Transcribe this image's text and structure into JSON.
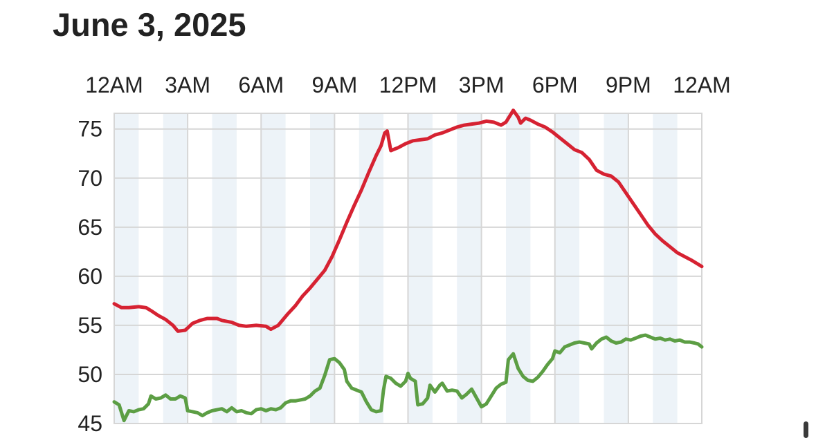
{
  "header": {
    "title": "June 3, 2025"
  },
  "chart_data": {
    "type": "line",
    "title": "",
    "xlabel": "",
    "ylabel": "",
    "x_unit": "hour of day",
    "xlim": [
      0,
      24
    ],
    "ylim": [
      45,
      76.6
    ],
    "grid": true,
    "legend": "none",
    "x_ticks": [
      {
        "hour": 0,
        "label": "12AM"
      },
      {
        "hour": 3,
        "label": "3AM"
      },
      {
        "hour": 6,
        "label": "6AM"
      },
      {
        "hour": 9,
        "label": "9AM"
      },
      {
        "hour": 12,
        "label": "12PM"
      },
      {
        "hour": 15,
        "label": "3PM"
      },
      {
        "hour": 18,
        "label": "6PM"
      },
      {
        "hour": 21,
        "label": "9PM"
      },
      {
        "hour": 24,
        "label": "12AM"
      }
    ],
    "y_ticks": [
      45,
      50,
      55,
      60,
      65,
      70,
      75
    ],
    "series": [
      {
        "color": "#d62232",
        "points": [
          [
            0,
            57.2
          ],
          [
            0.3,
            56.8
          ],
          [
            0.6,
            56.8
          ],
          [
            1,
            56.9
          ],
          [
            1.3,
            56.8
          ],
          [
            1.5,
            56.5
          ],
          [
            1.8,
            56.0
          ],
          [
            2.1,
            55.6
          ],
          [
            2.4,
            55.0
          ],
          [
            2.6,
            54.4
          ],
          [
            2.9,
            54.5
          ],
          [
            3.2,
            55.2
          ],
          [
            3.5,
            55.5
          ],
          [
            3.8,
            55.7
          ],
          [
            4.2,
            55.7
          ],
          [
            4.4,
            55.5
          ],
          [
            4.8,
            55.3
          ],
          [
            5.1,
            55.0
          ],
          [
            5.4,
            54.9
          ],
          [
            5.8,
            55.0
          ],
          [
            6.2,
            54.9
          ],
          [
            6.4,
            54.6
          ],
          [
            6.7,
            55.0
          ],
          [
            7.1,
            56.2
          ],
          [
            7.4,
            57.0
          ],
          [
            7.7,
            58.0
          ],
          [
            8.0,
            58.8
          ],
          [
            8.3,
            59.7
          ],
          [
            8.6,
            60.6
          ],
          [
            8.9,
            62.0
          ],
          [
            9.2,
            63.7
          ],
          [
            9.5,
            65.5
          ],
          [
            9.8,
            67.2
          ],
          [
            10.1,
            68.8
          ],
          [
            10.4,
            70.6
          ],
          [
            10.7,
            72.3
          ],
          [
            10.9,
            73.3
          ],
          [
            11.05,
            74.6
          ],
          [
            11.15,
            74.8
          ],
          [
            11.3,
            72.8
          ],
          [
            11.6,
            73.1
          ],
          [
            11.9,
            73.5
          ],
          [
            12.2,
            73.8
          ],
          [
            12.5,
            73.9
          ],
          [
            12.8,
            74.0
          ],
          [
            13.1,
            74.4
          ],
          [
            13.4,
            74.6
          ],
          [
            13.7,
            74.9
          ],
          [
            14.0,
            75.2
          ],
          [
            14.3,
            75.4
          ],
          [
            14.6,
            75.5
          ],
          [
            14.9,
            75.6
          ],
          [
            15.2,
            75.8
          ],
          [
            15.5,
            75.7
          ],
          [
            15.8,
            75.4
          ],
          [
            16.0,
            75.7
          ],
          [
            16.15,
            76.3
          ],
          [
            16.3,
            76.9
          ],
          [
            16.5,
            76.2
          ],
          [
            16.6,
            75.6
          ],
          [
            16.8,
            76.1
          ],
          [
            17.0,
            75.9
          ],
          [
            17.3,
            75.5
          ],
          [
            17.6,
            75.2
          ],
          [
            17.9,
            74.7
          ],
          [
            18.2,
            74.1
          ],
          [
            18.5,
            73.5
          ],
          [
            18.8,
            72.9
          ],
          [
            19.1,
            72.6
          ],
          [
            19.4,
            71.9
          ],
          [
            19.7,
            70.8
          ],
          [
            20.0,
            70.4
          ],
          [
            20.3,
            70.2
          ],
          [
            20.6,
            69.6
          ],
          [
            20.9,
            68.5
          ],
          [
            21.2,
            67.4
          ],
          [
            21.5,
            66.3
          ],
          [
            21.8,
            65.2
          ],
          [
            22.1,
            64.3
          ],
          [
            22.4,
            63.6
          ],
          [
            22.7,
            63.0
          ],
          [
            23.0,
            62.4
          ],
          [
            23.3,
            62.0
          ],
          [
            23.6,
            61.6
          ],
          [
            24.0,
            61.0
          ]
        ]
      },
      {
        "color": "#5c9e44",
        "points": [
          [
            0,
            47.2
          ],
          [
            0.2,
            46.9
          ],
          [
            0.4,
            45.3
          ],
          [
            0.6,
            46.3
          ],
          [
            0.8,
            46.2
          ],
          [
            1.0,
            46.4
          ],
          [
            1.2,
            46.5
          ],
          [
            1.4,
            47.0
          ],
          [
            1.5,
            47.8
          ],
          [
            1.7,
            47.5
          ],
          [
            1.9,
            47.6
          ],
          [
            2.1,
            47.9
          ],
          [
            2.3,
            47.5
          ],
          [
            2.5,
            47.5
          ],
          [
            2.7,
            47.8
          ],
          [
            2.9,
            47.6
          ],
          [
            3.0,
            46.3
          ],
          [
            3.2,
            46.2
          ],
          [
            3.4,
            46.1
          ],
          [
            3.6,
            45.8
          ],
          [
            3.8,
            46.1
          ],
          [
            4.0,
            46.3
          ],
          [
            4.2,
            46.4
          ],
          [
            4.4,
            46.5
          ],
          [
            4.6,
            46.2
          ],
          [
            4.8,
            46.6
          ],
          [
            5.0,
            46.2
          ],
          [
            5.2,
            46.3
          ],
          [
            5.4,
            46.1
          ],
          [
            5.6,
            46.0
          ],
          [
            5.8,
            46.4
          ],
          [
            6.0,
            46.5
          ],
          [
            6.2,
            46.3
          ],
          [
            6.4,
            46.5
          ],
          [
            6.6,
            46.4
          ],
          [
            6.8,
            46.6
          ],
          [
            7.0,
            47.1
          ],
          [
            7.2,
            47.3
          ],
          [
            7.4,
            47.3
          ],
          [
            7.6,
            47.4
          ],
          [
            7.8,
            47.5
          ],
          [
            8.0,
            47.8
          ],
          [
            8.2,
            48.3
          ],
          [
            8.4,
            48.6
          ],
          [
            8.6,
            49.9
          ],
          [
            8.8,
            51.5
          ],
          [
            9.0,
            51.6
          ],
          [
            9.2,
            51.2
          ],
          [
            9.4,
            50.5
          ],
          [
            9.5,
            49.3
          ],
          [
            9.7,
            48.6
          ],
          [
            9.9,
            48.4
          ],
          [
            10.1,
            48.2
          ],
          [
            10.3,
            47.2
          ],
          [
            10.5,
            46.4
          ],
          [
            10.7,
            46.2
          ],
          [
            10.9,
            46.3
          ],
          [
            11.0,
            48.4
          ],
          [
            11.1,
            49.8
          ],
          [
            11.3,
            49.6
          ],
          [
            11.5,
            49.1
          ],
          [
            11.7,
            48.8
          ],
          [
            11.9,
            49.3
          ],
          [
            12.0,
            50.1
          ],
          [
            12.1,
            49.6
          ],
          [
            12.3,
            49.3
          ],
          [
            12.4,
            46.9
          ],
          [
            12.6,
            47.0
          ],
          [
            12.8,
            47.6
          ],
          [
            12.9,
            48.9
          ],
          [
            13.1,
            48.2
          ],
          [
            13.3,
            48.9
          ],
          [
            13.4,
            49.1
          ],
          [
            13.6,
            48.3
          ],
          [
            13.8,
            48.4
          ],
          [
            14.0,
            48.3
          ],
          [
            14.2,
            47.6
          ],
          [
            14.4,
            48.0
          ],
          [
            14.6,
            48.5
          ],
          [
            14.8,
            47.6
          ],
          [
            15.0,
            46.7
          ],
          [
            15.2,
            47.0
          ],
          [
            15.4,
            47.8
          ],
          [
            15.6,
            48.6
          ],
          [
            15.8,
            49.0
          ],
          [
            16.0,
            49.2
          ],
          [
            16.1,
            51.5
          ],
          [
            16.3,
            52.1
          ],
          [
            16.5,
            50.6
          ],
          [
            16.7,
            49.8
          ],
          [
            16.9,
            49.4
          ],
          [
            17.1,
            49.3
          ],
          [
            17.3,
            49.7
          ],
          [
            17.5,
            50.3
          ],
          [
            17.7,
            51.0
          ],
          [
            17.9,
            51.6
          ],
          [
            18.0,
            52.4
          ],
          [
            18.2,
            52.2
          ],
          [
            18.4,
            52.8
          ],
          [
            18.6,
            53.0
          ],
          [
            18.8,
            53.2
          ],
          [
            19.0,
            53.3
          ],
          [
            19.2,
            53.2
          ],
          [
            19.4,
            53.1
          ],
          [
            19.5,
            52.6
          ],
          [
            19.7,
            53.2
          ],
          [
            19.9,
            53.6
          ],
          [
            20.1,
            53.8
          ],
          [
            20.3,
            53.4
          ],
          [
            20.5,
            53.2
          ],
          [
            20.7,
            53.3
          ],
          [
            20.9,
            53.6
          ],
          [
            21.1,
            53.5
          ],
          [
            21.3,
            53.7
          ],
          [
            21.5,
            53.9
          ],
          [
            21.7,
            54.0
          ],
          [
            21.9,
            53.8
          ],
          [
            22.1,
            53.6
          ],
          [
            22.3,
            53.7
          ],
          [
            22.5,
            53.5
          ],
          [
            22.7,
            53.6
          ],
          [
            22.9,
            53.4
          ],
          [
            23.1,
            53.5
          ],
          [
            23.3,
            53.3
          ],
          [
            23.5,
            53.3
          ],
          [
            23.7,
            53.2
          ],
          [
            23.85,
            53.1
          ],
          [
            24.0,
            52.8
          ]
        ]
      }
    ]
  }
}
